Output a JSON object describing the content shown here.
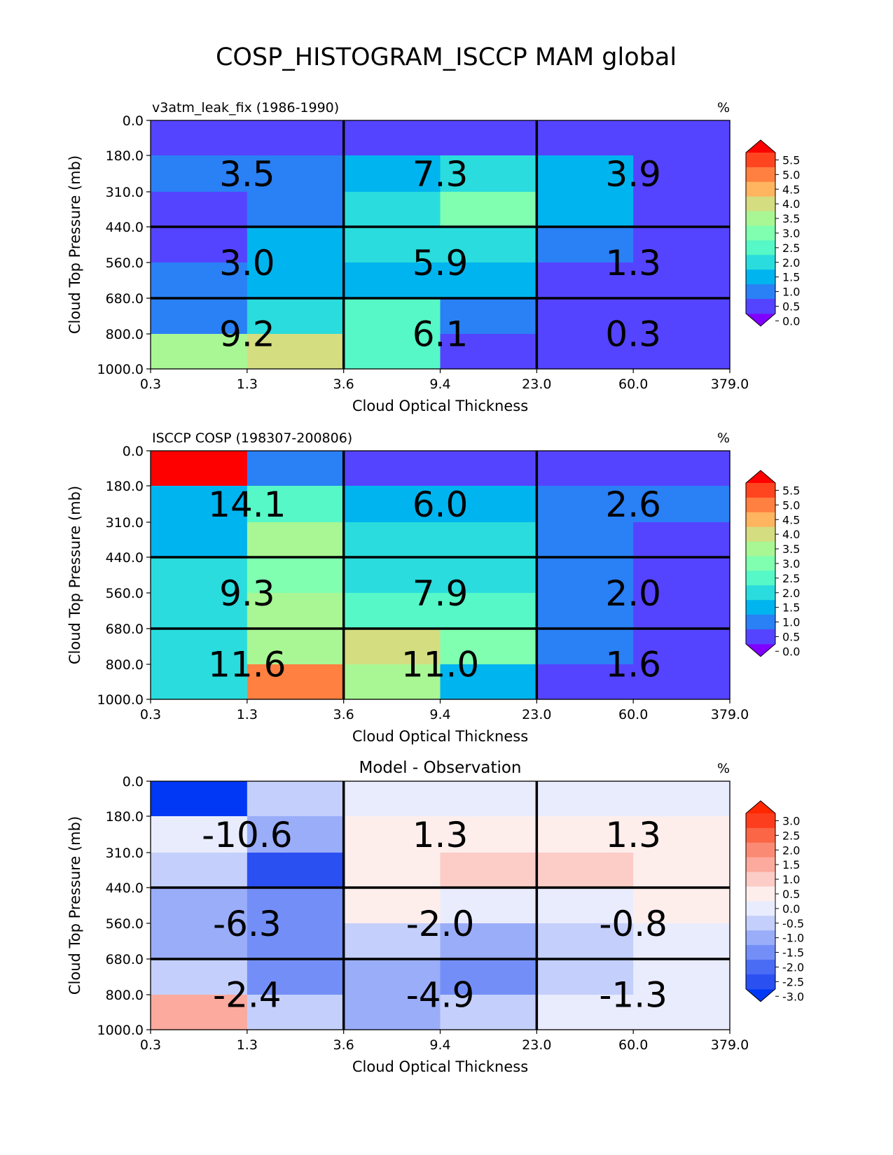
{
  "figure": {
    "title": "COSP_HISTOGRAM_ISCCP MAM global"
  },
  "chart_data": [
    {
      "type": "heatmap",
      "title_left": "v3atm_leak_fix (1986-1990)",
      "title_center": "",
      "unit": "%",
      "xlabel": "Cloud Optical Thickness",
      "ylabel": "Cloud Top Pressure (mb)",
      "x_ticks": [
        "0.3",
        "1.3",
        "3.6",
        "9.4",
        "23.0",
        "60.0",
        "379.0"
      ],
      "y_ticks": [
        "0.0",
        "180.0",
        "310.0",
        "440.0",
        "560.0",
        "680.0",
        "800.0",
        "1000.0"
      ],
      "values": [
        [
          0.2,
          0.2,
          0.2,
          0.2,
          0.2,
          0.2
        ],
        [
          0.8,
          0.8,
          1.4,
          1.8,
          1.4,
          0.2
        ],
        [
          0.2,
          0.8,
          1.8,
          2.8,
          1.4,
          0.2
        ],
        [
          0.2,
          1.4,
          1.8,
          1.8,
          0.8,
          0.2
        ],
        [
          0.8,
          1.4,
          1.4,
          1.4,
          0.2,
          0.2
        ],
        [
          0.8,
          1.8,
          2.2,
          0.8,
          0.2,
          0.2
        ],
        [
          3.2,
          3.7,
          2.2,
          0.2,
          0.2,
          0.2
        ]
      ],
      "group_labels": [
        [
          "3.5",
          "7.3",
          "3.9"
        ],
        [
          "3.0",
          "5.9",
          "1.3"
        ],
        [
          "9.2",
          "6.1",
          "0.3"
        ]
      ],
      "colorbar": {
        "ticks": [
          "5.5",
          "5.0",
          "4.5",
          "4.0",
          "3.5",
          "3.0",
          "2.5",
          "2.0",
          "1.5",
          "1.0",
          "0.5",
          "0.0"
        ],
        "levels": [
          0.0,
          0.5,
          1.0,
          1.5,
          2.0,
          2.5,
          3.0,
          3.5,
          4.0,
          4.5,
          5.0,
          5.5
        ],
        "colors": [
          "#5544ff",
          "#2a80f5",
          "#00b4ef",
          "#2adcdd",
          "#55f8c6",
          "#80ffb0",
          "#a9f694",
          "#d4dd80",
          "#ffb45f",
          "#ff8040",
          "#ff4520"
        ],
        "under_color": "#8000ff",
        "over_color": "#ff0000",
        "extend": "both"
      }
    },
    {
      "type": "heatmap",
      "title_left": "ISCCP COSP (198307-200806)",
      "title_center": "",
      "unit": "%",
      "xlabel": "Cloud Optical Thickness",
      "ylabel": "Cloud Top Pressure (mb)",
      "x_ticks": [
        "0.3",
        "1.3",
        "3.6",
        "9.4",
        "23.0",
        "60.0",
        "379.0"
      ],
      "y_ticks": [
        "0.0",
        "180.0",
        "310.0",
        "440.0",
        "560.0",
        "680.0",
        "800.0",
        "1000.0"
      ],
      "values": [
        [
          6.0,
          0.8,
          0.2,
          0.2,
          0.2,
          0.2
        ],
        [
          1.4,
          2.2,
          1.4,
          1.4,
          0.8,
          0.8
        ],
        [
          1.4,
          3.2,
          1.8,
          1.8,
          0.8,
          0.2
        ],
        [
          1.8,
          2.8,
          1.8,
          1.8,
          0.8,
          0.2
        ],
        [
          1.8,
          3.2,
          2.2,
          2.2,
          0.8,
          0.2
        ],
        [
          1.8,
          3.2,
          3.7,
          2.8,
          0.8,
          0.2
        ],
        [
          1.8,
          4.7,
          3.2,
          1.4,
          0.2,
          0.2
        ]
      ],
      "group_labels": [
        [
          "14.1",
          "6.0",
          "2.6"
        ],
        [
          "9.3",
          "7.9",
          "2.0"
        ],
        [
          "11.6",
          "11.0",
          "1.6"
        ]
      ],
      "colorbar": {
        "ticks": [
          "5.5",
          "5.0",
          "4.5",
          "4.0",
          "3.5",
          "3.0",
          "2.5",
          "2.0",
          "1.5",
          "1.0",
          "0.5",
          "0.0"
        ],
        "levels": [
          0.0,
          0.5,
          1.0,
          1.5,
          2.0,
          2.5,
          3.0,
          3.5,
          4.0,
          4.5,
          5.0,
          5.5
        ],
        "colors": [
          "#5544ff",
          "#2a80f5",
          "#00b4ef",
          "#2adcdd",
          "#55f8c6",
          "#80ffb0",
          "#a9f694",
          "#d4dd80",
          "#ffb45f",
          "#ff8040",
          "#ff4520"
        ],
        "under_color": "#8000ff",
        "over_color": "#ff0000",
        "extend": "both"
      }
    },
    {
      "type": "heatmap",
      "title_left": "",
      "title_center": "Model - Observation",
      "unit": "%",
      "xlabel": "Cloud Optical Thickness",
      "ylabel": "Cloud Top Pressure (mb)",
      "x_ticks": [
        "0.3",
        "1.3",
        "3.6",
        "9.4",
        "23.0",
        "60.0",
        "379.0"
      ],
      "y_ticks": [
        "0.0",
        "180.0",
        "310.0",
        "440.0",
        "560.0",
        "680.0",
        "800.0",
        "1000.0"
      ],
      "values": [
        [
          -3.2,
          -0.8,
          -0.2,
          -0.2,
          -0.2,
          -0.2
        ],
        [
          -0.2,
          -1.2,
          0.2,
          0.2,
          0.2,
          0.2
        ],
        [
          -0.8,
          -2.7,
          0.2,
          0.7,
          0.7,
          0.2
        ],
        [
          -1.2,
          -1.7,
          0.2,
          -0.2,
          -0.2,
          0.2
        ],
        [
          -1.2,
          -1.7,
          -0.8,
          -1.2,
          -0.8,
          -0.2
        ],
        [
          -0.8,
          -1.7,
          -1.2,
          -1.7,
          -0.8,
          -0.2
        ],
        [
          1.2,
          -0.8,
          -1.2,
          -0.8,
          -0.2,
          -0.2
        ]
      ],
      "group_labels": [
        [
          "-10.6",
          "1.3",
          "1.3"
        ],
        [
          "-6.3",
          "-2.0",
          "-0.8"
        ],
        [
          "-2.4",
          "-4.9",
          "-1.3"
        ]
      ],
      "colorbar": {
        "ticks": [
          "3.0",
          "2.5",
          "2.0",
          "1.5",
          "1.0",
          "0.5",
          "0.0",
          "-0.5",
          "-1.0",
          "-1.5",
          "-2.0",
          "-2.5",
          "-3.0"
        ],
        "levels": [
          -3.0,
          -2.5,
          -2.0,
          -1.5,
          -1.0,
          -0.5,
          0.0,
          0.5,
          1.0,
          1.5,
          2.0,
          2.5,
          3.0
        ],
        "colors": [
          "#2b50f2",
          "#4a6cf5",
          "#738ff7",
          "#9aadf9",
          "#c4d0fb",
          "#e9ecfd",
          "#fdeeec",
          "#fcccc6",
          "#fcaa9d",
          "#fb8a74",
          "#fb6646",
          "#fc3e1e"
        ],
        "under_color": "#0038f5",
        "over_color": "#ff2800",
        "extend": "both"
      }
    }
  ]
}
